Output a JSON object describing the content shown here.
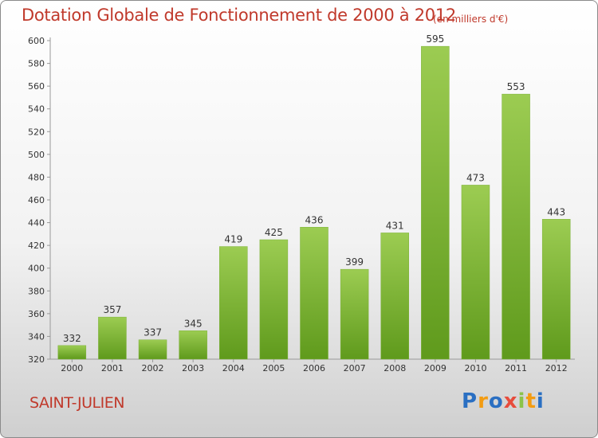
{
  "chart_data": {
    "type": "bar",
    "title": "Dotation Globale de Fonctionnement de 2000 à 2012",
    "unit_note": "(en milliers d'€)",
    "categories": [
      "2000",
      "2001",
      "2002",
      "2003",
      "2004",
      "2005",
      "2006",
      "2007",
      "2008",
      "2009",
      "2010",
      "2011",
      "2012"
    ],
    "values": [
      332,
      357,
      337,
      345,
      419,
      425,
      436,
      399,
      431,
      595,
      473,
      553,
      443
    ],
    "ylim": [
      320,
      600
    ],
    "yticks": [
      320,
      340,
      360,
      380,
      400,
      420,
      440,
      460,
      480,
      500,
      520,
      540,
      560,
      580,
      600
    ],
    "grid": false,
    "bar_color_top": "#9ccc52",
    "bar_color_bottom": "#5f9a1c"
  },
  "commune": "SAINT-JULIEN",
  "logo": {
    "letters": [
      "P",
      "r",
      "o",
      "x",
      "i",
      "t",
      "i"
    ],
    "colors": [
      "#2a6fc2",
      "#f39c12",
      "#2a6fc2",
      "#e74c3c",
      "#8bc34a",
      "#f39c12",
      "#2a6fc2"
    ]
  }
}
